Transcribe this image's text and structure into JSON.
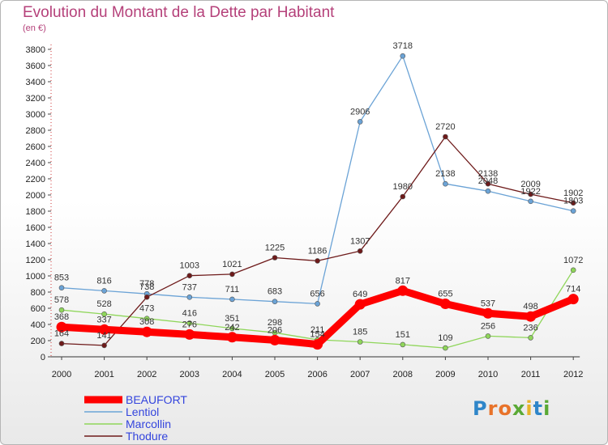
{
  "title": "Evolution du Montant de la Dette par Habitant",
  "subtitle": "(en €)",
  "logo": {
    "letters": [
      "P",
      "r",
      "o",
      "x",
      "i",
      "t",
      "i"
    ],
    "colors": [
      "#2f86c9",
      "#e8732a",
      "#e8732a",
      "#5aa935",
      "#e8b32a",
      "#2f86c9",
      "#5aa935"
    ]
  },
  "chart_data": {
    "type": "line",
    "x": [
      "2000",
      "2001",
      "2002",
      "2003",
      "2004",
      "2005",
      "2006",
      "2007",
      "2008",
      "2009",
      "2010",
      "2011",
      "2012"
    ],
    "ylim": [
      0,
      3800
    ],
    "yticks": [
      0,
      200,
      400,
      600,
      800,
      1000,
      1200,
      1400,
      1600,
      1800,
      2000,
      2200,
      2400,
      2600,
      2800,
      3000,
      3200,
      3400,
      3600,
      3800
    ],
    "grid": false,
    "legend_position": "bottom-left",
    "series": [
      {
        "name": "BEAUFORT",
        "color": "#ff0000",
        "values": [
          368,
          337,
          308,
          276,
          242,
          206,
          154,
          649,
          817,
          655,
          537,
          498,
          714
        ]
      },
      {
        "name": "Lentiol",
        "color": "#6ba3d6",
        "values": [
          853,
          816,
          778,
          737,
          711,
          683,
          656,
          2906,
          3718,
          2138,
          2048,
          1922,
          1803
        ]
      },
      {
        "name": "Marcollin",
        "color": "#8fd65a",
        "values": [
          578,
          528,
          473,
          416,
          351,
          298,
          211,
          185,
          151,
          109,
          256,
          236,
          1072
        ]
      },
      {
        "name": "Thodure",
        "color": "#6e1a1a",
        "values": [
          164,
          141,
          738,
          1003,
          1021,
          1225,
          1186,
          1307,
          1980,
          2720,
          2138,
          2009,
          1902
        ]
      }
    ]
  }
}
